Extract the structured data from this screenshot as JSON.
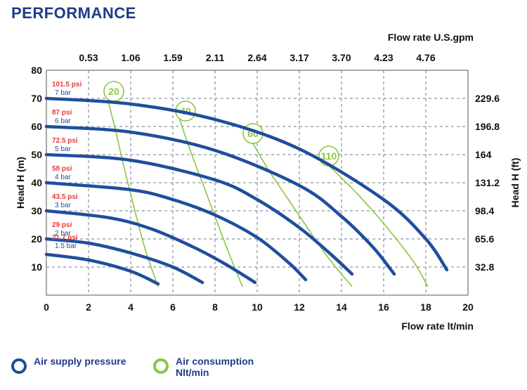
{
  "title": "PERFORMANCE",
  "colors": {
    "title": "#1f3c88",
    "pressure_curve": "#1f4e9c",
    "air_curve": "#8cc63f",
    "psi_label": "#e53935",
    "bar_label": "#1f4e9c",
    "grid": "#6c7a89"
  },
  "legend": [
    {
      "name": "pressure-legend",
      "label": "Air supply pressure",
      "color": "#1f4e9c"
    },
    {
      "name": "air-legend",
      "label": "Air consumption Nlt/min",
      "color": "#8cc63f"
    }
  ],
  "chart_data": {
    "type": "line",
    "title": "PERFORMANCE",
    "xlabel": "Flow rate  lt/min",
    "xlabel_top": "Flow rate U.S.gpm",
    "ylabel": "Head H (m)",
    "ylabel_right": "Head H (ft)",
    "xlim": [
      0,
      20
    ],
    "ylim": [
      0,
      80
    ],
    "x_ticks": [
      0,
      2,
      4,
      6,
      8,
      10,
      12,
      14,
      16,
      18,
      20
    ],
    "y_ticks": [
      10,
      20,
      30,
      40,
      50,
      60,
      70,
      80
    ],
    "x_top_ticks": [
      {
        "x": 2,
        "label": "0.53"
      },
      {
        "x": 4,
        "label": "1.06"
      },
      {
        "x": 6,
        "label": "1.59"
      },
      {
        "x": 8,
        "label": "2.11"
      },
      {
        "x": 10,
        "label": "2.64"
      },
      {
        "x": 12,
        "label": "3.17"
      },
      {
        "x": 14,
        "label": "3.70"
      },
      {
        "x": 16,
        "label": "4.23"
      },
      {
        "x": 18,
        "label": "4.76"
      }
    ],
    "y_right_ticks": [
      {
        "y": 10,
        "label": "32.8"
      },
      {
        "y": 20,
        "label": "65.6"
      },
      {
        "y": 30,
        "label": "98.4"
      },
      {
        "y": 40,
        "label": "131.2"
      },
      {
        "y": 50,
        "label": "164"
      },
      {
        "y": 60,
        "label": "196.8"
      },
      {
        "y": 70,
        "label": "229.6"
      }
    ],
    "grid": "dashed",
    "pressure_series": [
      {
        "psi": "101.5 psi",
        "bar": "7 bar",
        "label_y": 70,
        "points": [
          [
            0,
            70
          ],
          [
            4,
            68
          ],
          [
            8,
            62.5
          ],
          [
            12,
            52
          ],
          [
            16,
            34
          ],
          [
            18,
            20
          ],
          [
            19,
            9
          ]
        ]
      },
      {
        "psi": "87 psi",
        "bar": "6 bar",
        "label_y": 60,
        "points": [
          [
            0,
            60
          ],
          [
            4,
            58
          ],
          [
            8,
            51.5
          ],
          [
            12,
            39
          ],
          [
            14,
            28
          ],
          [
            15.5,
            17
          ],
          [
            16.5,
            7.5
          ]
        ]
      },
      {
        "psi": "72.5 psi",
        "bar": "5 bar",
        "label_y": 50,
        "points": [
          [
            0,
            50
          ],
          [
            4,
            48
          ],
          [
            8,
            41
          ],
          [
            10,
            34
          ],
          [
            12,
            24
          ],
          [
            13.5,
            14.5
          ],
          [
            14.5,
            7.5
          ]
        ]
      },
      {
        "psi": "58 psi",
        "bar": "4 bar",
        "label_y": 40,
        "points": [
          [
            0,
            40
          ],
          [
            4,
            37.5
          ],
          [
            6,
            34
          ],
          [
            8,
            28.5
          ],
          [
            10,
            20.5
          ],
          [
            11.5,
            11.5
          ],
          [
            12.3,
            5.5
          ]
        ]
      },
      {
        "psi": "43.5 psi",
        "bar": "3 bar",
        "label_y": 30,
        "points": [
          [
            0,
            30
          ],
          [
            3,
            27.5
          ],
          [
            5,
            23.5
          ],
          [
            7,
            17
          ],
          [
            8.5,
            11
          ],
          [
            9.9,
            4.5
          ]
        ]
      },
      {
        "psi": "29 psi",
        "bar": "2 bar",
        "label_y": 20,
        "points": [
          [
            0,
            20
          ],
          [
            2,
            18.5
          ],
          [
            4,
            15
          ],
          [
            6,
            10
          ],
          [
            7.4,
            4.5
          ]
        ]
      },
      {
        "psi": "21.7 psi",
        "bar": "1.5 bar",
        "label_y": 15.5,
        "points": [
          [
            0,
            14.5
          ],
          [
            2,
            12.5
          ],
          [
            4,
            8.5
          ],
          [
            5.3,
            4
          ]
        ]
      }
    ],
    "air_series": [
      {
        "name": "20",
        "bubble": [
          3.2,
          72.5
        ],
        "points": [
          [
            2.9,
            70
          ],
          [
            3.3,
            58
          ],
          [
            3.7,
            45
          ],
          [
            4.2,
            30
          ],
          [
            4.7,
            16
          ],
          [
            5.3,
            3
          ]
        ]
      },
      {
        "name": "40",
        "bubble": [
          6.6,
          65.5
        ],
        "points": [
          [
            6.3,
            63
          ],
          [
            6.8,
            52
          ],
          [
            7.4,
            40
          ],
          [
            8.0,
            28
          ],
          [
            8.6,
            16
          ],
          [
            9.3,
            3
          ]
        ]
      },
      {
        "name": "60",
        "bubble": [
          9.8,
          57.5
        ],
        "points": [
          [
            9.8,
            54
          ],
          [
            10.5,
            45
          ],
          [
            11.3,
            36
          ],
          [
            12.2,
            26
          ],
          [
            13.3,
            14
          ],
          [
            14.5,
            3
          ]
        ]
      },
      {
        "name": "110",
        "bubble": [
          13.4,
          49.5
        ],
        "points": [
          [
            13.4,
            46
          ],
          [
            14.5,
            38
          ],
          [
            15.6,
            29
          ],
          [
            16.6,
            20
          ],
          [
            17.5,
            11
          ],
          [
            18.1,
            3
          ]
        ]
      }
    ]
  }
}
